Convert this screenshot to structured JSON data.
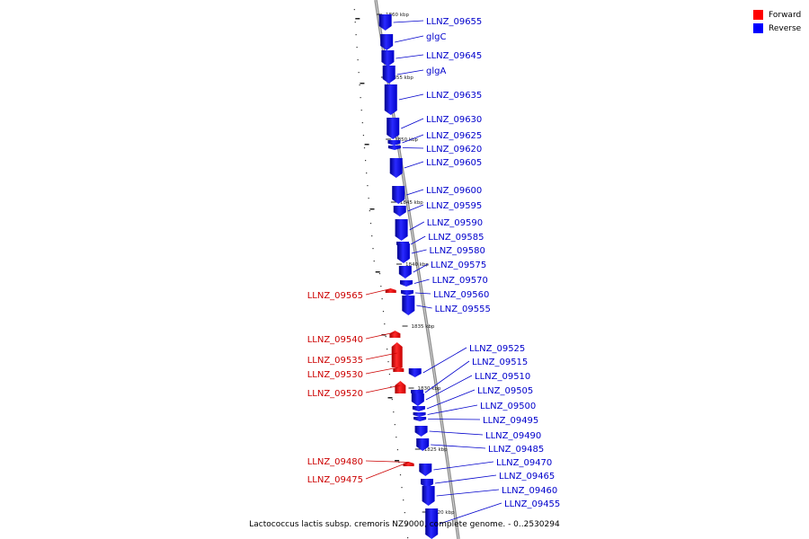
{
  "legend": {
    "forward_label": "Forward",
    "reverse_label": "Reverse",
    "forward_color": "#ff0000",
    "reverse_color": "#0000ff"
  },
  "caption": "Lactococcus lactis subsp. cremoris NZ9000, complete genome. - 0..2530294",
  "label_colors": {
    "forward": "#cc0000",
    "reverse": "#0000cc"
  },
  "tick_labels": [
    "1860 kbp",
    "1855 kbp",
    "1850 kbp",
    "1845 kbp",
    "1840 kbp",
    "1835 kbp",
    "1830 kbp",
    "1825 kbp",
    "1820 kbp"
  ],
  "genes": [
    {
      "name": "LLNZ_09655",
      "strand": "reverse"
    },
    {
      "name": "glgC",
      "strand": "reverse"
    },
    {
      "name": "LLNZ_09645",
      "strand": "reverse"
    },
    {
      "name": "glgA",
      "strand": "reverse"
    },
    {
      "name": "LLNZ_09635",
      "strand": "reverse"
    },
    {
      "name": "LLNZ_09630",
      "strand": "reverse"
    },
    {
      "name": "LLNZ_09625",
      "strand": "reverse"
    },
    {
      "name": "LLNZ_09620",
      "strand": "reverse"
    },
    {
      "name": "LLNZ_09605",
      "strand": "reverse"
    },
    {
      "name": "LLNZ_09600",
      "strand": "reverse"
    },
    {
      "name": "LLNZ_09595",
      "strand": "reverse"
    },
    {
      "name": "LLNZ_09590",
      "strand": "reverse"
    },
    {
      "name": "LLNZ_09585",
      "strand": "reverse"
    },
    {
      "name": "LLNZ_09580",
      "strand": "reverse"
    },
    {
      "name": "LLNZ_09575",
      "strand": "reverse"
    },
    {
      "name": "LLNZ_09570",
      "strand": "reverse"
    },
    {
      "name": "LLNZ_09565",
      "strand": "forward"
    },
    {
      "name": "LLNZ_09560",
      "strand": "reverse"
    },
    {
      "name": "LLNZ_09555",
      "strand": "reverse"
    },
    {
      "name": "LLNZ_09540",
      "strand": "forward"
    },
    {
      "name": "LLNZ_09535",
      "strand": "forward"
    },
    {
      "name": "LLNZ_09530",
      "strand": "forward"
    },
    {
      "name": "LLNZ_09520",
      "strand": "forward"
    },
    {
      "name": "LLNZ_09525",
      "strand": "reverse"
    },
    {
      "name": "LLNZ_09515",
      "strand": "reverse"
    },
    {
      "name": "LLNZ_09510",
      "strand": "reverse"
    },
    {
      "name": "LLNZ_09505",
      "strand": "reverse"
    },
    {
      "name": "LLNZ_09500",
      "strand": "reverse"
    },
    {
      "name": "LLNZ_09495",
      "strand": "reverse"
    },
    {
      "name": "LLNZ_09490",
      "strand": "reverse"
    },
    {
      "name": "LLNZ_09485",
      "strand": "reverse"
    },
    {
      "name": "LLNZ_09480",
      "strand": "forward"
    },
    {
      "name": "LLNZ_09475",
      "strand": "forward"
    },
    {
      "name": "LLNZ_09470",
      "strand": "reverse"
    },
    {
      "name": "LLNZ_09465",
      "strand": "reverse"
    },
    {
      "name": "LLNZ_09460",
      "strand": "reverse"
    },
    {
      "name": "LLNZ_09455",
      "strand": "reverse"
    }
  ]
}
